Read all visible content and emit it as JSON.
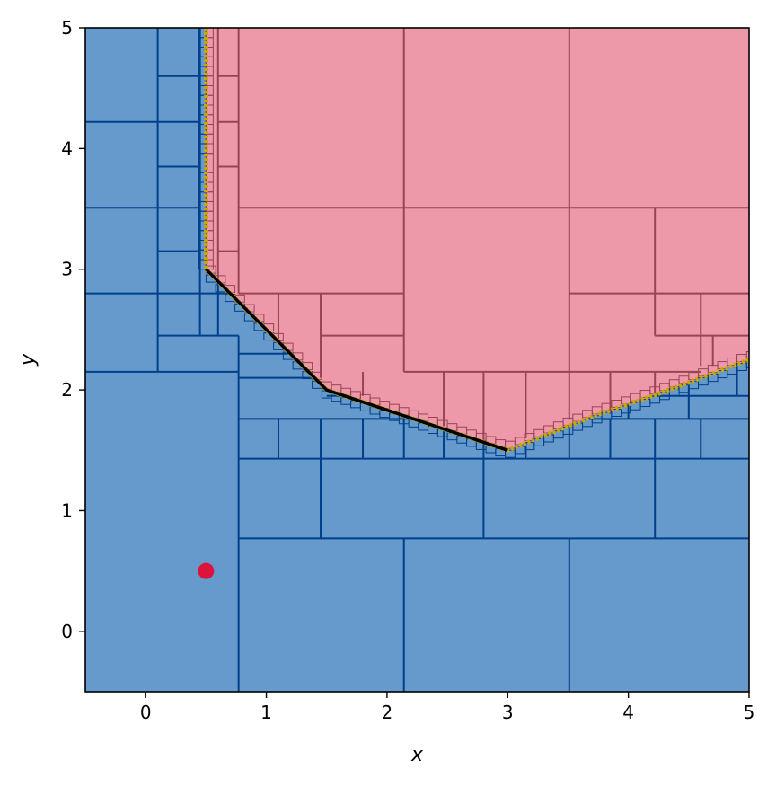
{
  "chart_data": {
    "type": "region-partition",
    "xlabel": "x",
    "ylabel": "y",
    "xlim": [
      -0.5,
      5
    ],
    "ylim": [
      -0.5,
      5
    ],
    "xticks": [
      0,
      1,
      2,
      3,
      4,
      5
    ],
    "yticks": [
      0,
      1,
      2,
      3,
      4,
      5
    ],
    "grid": false,
    "colors": {
      "safe_fill": "#6699CC",
      "safe_edge": "#00408A",
      "unsafe_fill": "#EE99AA",
      "unsafe_edge": "#994455",
      "boundary": "#C8A800",
      "path": "#000000",
      "start_point": "#DC143C"
    },
    "boundary_curve": [
      [
        0.5,
        5.0
      ],
      [
        0.5,
        3.0
      ],
      [
        1.5,
        2.0
      ],
      [
        3.0,
        1.5
      ],
      [
        3.3,
        1.62
      ],
      [
        3.7,
        1.78
      ],
      [
        4.2,
        1.95
      ],
      [
        4.6,
        2.1
      ],
      [
        5.0,
        2.25
      ]
    ],
    "path": [
      [
        0.5,
        3.0
      ],
      [
        1.5,
        2.0
      ],
      [
        3.0,
        1.5
      ]
    ],
    "point": [
      0.5,
      0.5
    ]
  }
}
